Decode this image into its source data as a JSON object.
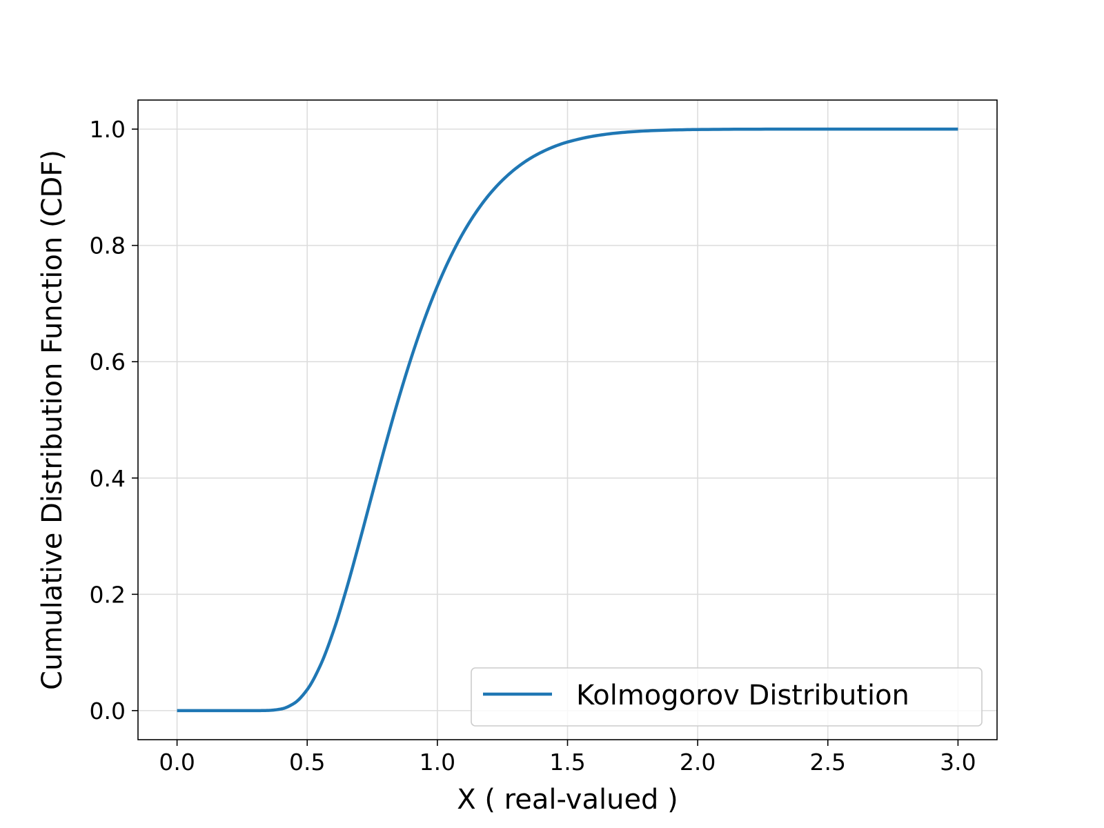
{
  "chart_data": {
    "type": "line",
    "title": "",
    "xlabel": "X ( real-valued )",
    "ylabel": "Cumulative Distribution Function (CDF)",
    "xlim": [
      -0.15,
      3.15
    ],
    "ylim": [
      -0.05,
      1.05
    ],
    "x_ticks": [
      0.0,
      0.5,
      1.0,
      1.5,
      2.0,
      2.5,
      3.0
    ],
    "x_tick_labels": [
      "0.0",
      "0.5",
      "1.0",
      "1.5",
      "2.0",
      "2.5",
      "3.0"
    ],
    "y_ticks": [
      0.0,
      0.2,
      0.4,
      0.6,
      0.8,
      1.0
    ],
    "y_tick_labels": [
      "0.0",
      "0.2",
      "0.4",
      "0.6",
      "0.8",
      "1.0"
    ],
    "grid": true,
    "legend_position": "lower-right",
    "series": [
      {
        "name": "Kolmogorov Distribution",
        "color": "#1f77b4",
        "x": [
          0.0,
          0.1,
          0.2,
          0.3,
          0.35,
          0.4,
          0.45,
          0.5,
          0.55,
          0.6,
          0.65,
          0.7,
          0.75,
          0.8,
          0.85,
          0.9,
          0.95,
          1.0,
          1.05,
          1.1,
          1.15,
          1.2,
          1.25,
          1.3,
          1.35,
          1.4,
          1.45,
          1.5,
          1.6,
          1.7,
          1.8,
          1.9,
          2.0,
          2.2,
          2.4,
          2.6,
          2.8,
          3.0
        ],
        "y": [
          0.0,
          0.0,
          0.0,
          0.0,
          0.0003,
          0.0028,
          0.0126,
          0.0361,
          0.0772,
          0.1357,
          0.208,
          0.2888,
          0.3728,
          0.4559,
          0.5347,
          0.6073,
          0.6725,
          0.73,
          0.7798,
          0.8223,
          0.858,
          0.8878,
          0.9121,
          0.9319,
          0.9478,
          0.9603,
          0.9702,
          0.9778,
          0.988,
          0.9938,
          0.9969,
          0.9985,
          0.9993,
          0.9999,
          1.0,
          1.0,
          1.0,
          1.0
        ]
      }
    ]
  }
}
